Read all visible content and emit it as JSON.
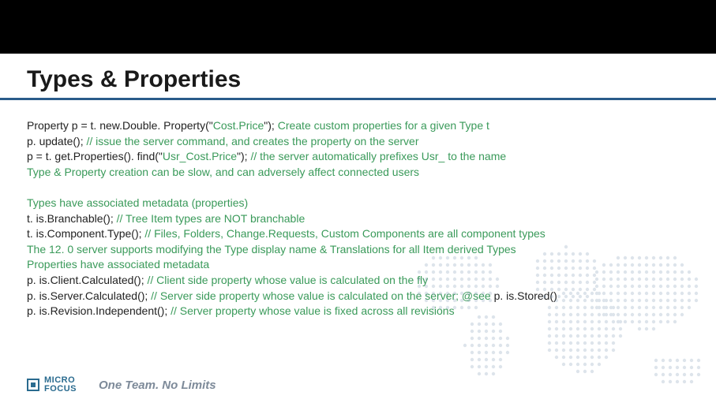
{
  "title": "Types & Properties",
  "lines": [
    {
      "segs": [
        {
          "c": "black",
          "t": "Property p = t. new.Double. Property(\""
        },
        {
          "c": "green",
          "t": "Cost.Price"
        },
        {
          "c": "black",
          "t": "\"); "
        },
        {
          "c": "green",
          "t": "Create custom properties for a given Type t"
        }
      ]
    },
    {
      "segs": [
        {
          "c": "black",
          "t": "p. update(); "
        },
        {
          "c": "green",
          "t": "// issue the server command, and creates the property on the server"
        }
      ]
    },
    {
      "segs": [
        {
          "c": "black",
          "t": "p = t. get.Properties(). find(\""
        },
        {
          "c": "green",
          "t": "Usr_Cost.Price"
        },
        {
          "c": "black",
          "t": "\"); "
        },
        {
          "c": "green",
          "t": "// the server automatically prefixes Usr_ to the name"
        }
      ]
    },
    {
      "segs": [
        {
          "c": "green",
          "t": "Type & Property creation can be slow, and can adversely affect  connected users"
        }
      ]
    },
    {
      "segs": []
    },
    {
      "segs": [
        {
          "c": "green",
          "t": "Types have associated metadata (properties)"
        }
      ]
    },
    {
      "segs": [
        {
          "c": "black",
          "t": "t. is.Branchable(); "
        },
        {
          "c": "green",
          "t": "// Tree Item types are NOT branchable"
        }
      ]
    },
    {
      "segs": [
        {
          "c": "black",
          "t": "t. is.Component.Type(); "
        },
        {
          "c": "green",
          "t": "// Files, Folders, Change.Requests, Custom Components are all component types"
        }
      ]
    },
    {
      "segs": [
        {
          "c": "green",
          "t": " The 12. 0 server supports modifying the Type display name & Translations for all Item derived Types"
        }
      ]
    },
    {
      "segs": [
        {
          "c": "green",
          "t": " Properties have associated metadata"
        }
      ]
    },
    {
      "segs": [
        {
          "c": "black",
          "t": "p. is.Client.Calculated(); "
        },
        {
          "c": "green",
          "t": "// Client side property whose value is calculated on the fly"
        }
      ]
    },
    {
      "segs": [
        {
          "c": "black",
          "t": "p. is.Server.Calculated(); "
        },
        {
          "c": "green",
          "t": "// Server side property whose value is calculated on the server; @see "
        },
        {
          "c": "black",
          "t": "p. is.Stored()"
        }
      ]
    },
    {
      "segs": [
        {
          "c": "black",
          "t": "p. is.Revision.Independent(); "
        },
        {
          "c": "green",
          "t": "// Server property whose value is fixed across all revisions"
        }
      ]
    }
  ],
  "logo": {
    "line1": "MICRO",
    "line2": "FOCUS"
  },
  "tagline": "One Team. No Limits",
  "colors": {
    "underline": "#2a5b8a",
    "green": "#3a9a5a",
    "logo": "#2a6b8f",
    "tagline": "#7d8a99",
    "map_dot": "#6a8aa8"
  }
}
